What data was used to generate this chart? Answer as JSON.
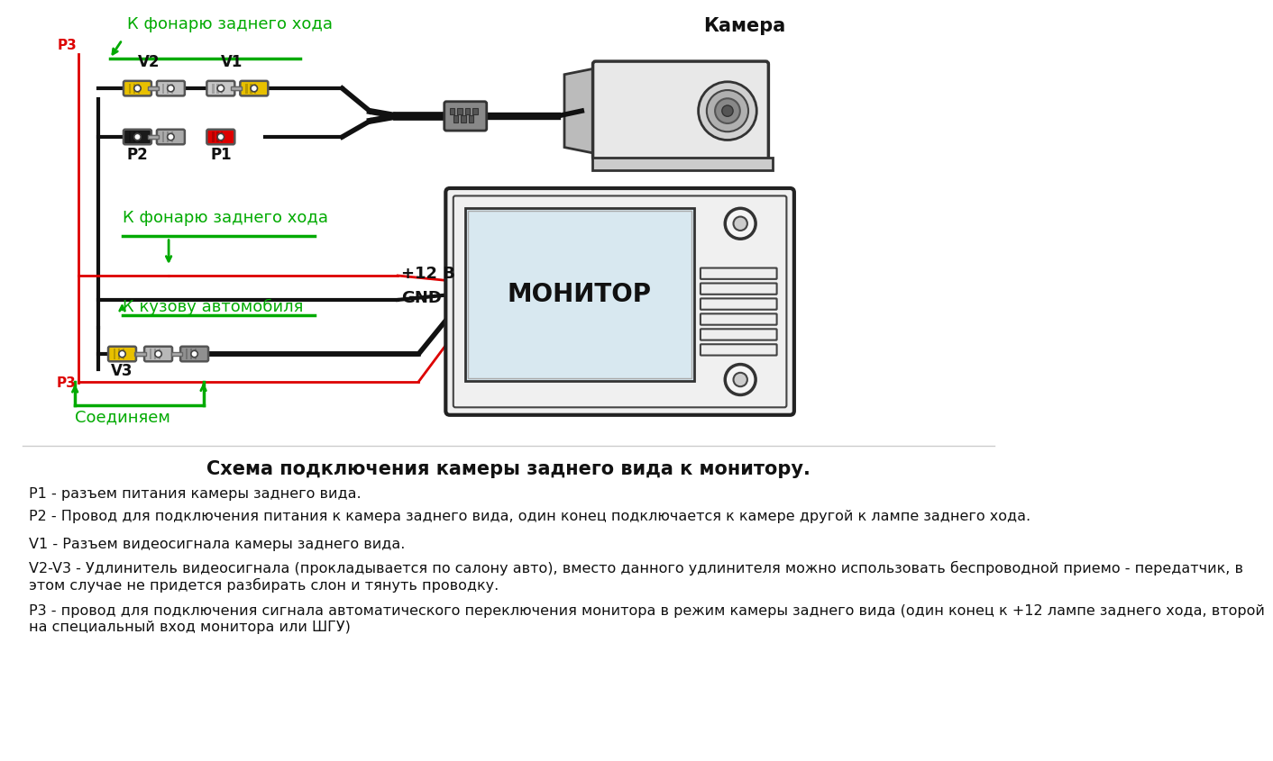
{
  "bg_color": "#ffffff",
  "title": "Схема подключения камеры заднего вида к монитору.",
  "legend_lines": [
    "P1 - разъем питания камеры заднего вида.",
    "P2 - Провод для подключения питания к камера заднего вида, один конец подключается к камере другой к лампе заднего хода.",
    "V1 - Разъем видеосигнала камеры заднего вида.",
    "V2-V3 - Удлинитель видеосигнала (прокладывается по салону авто), вместо данного удлинителя можно использовать беспроводной приемо - передатчик, в этом случае не придется разбирать слон и тянуть проводку.",
    "Р3 - провод для подключения сигнала автоматического переключения монитора в режим камеры заднего вида (один конец к +12 лампе заднего хода, второй на специальный вход монитора или ШГУ)"
  ],
  "green_color": "#00aa00",
  "red_color": "#dd0000",
  "black_color": "#111111",
  "yellow_color": "#e8c000",
  "dark_yellow": "#c8a000",
  "gray_color": "#888888",
  "light_gray": "#cccccc",
  "label_camera": "Камера",
  "label_monitor": "МОНИТОР",
  "label_v1": "V1",
  "label_v2": "V2",
  "label_v3": "V3",
  "label_p1": "P1",
  "label_p2": "P2",
  "label_p3_top": "Р3",
  "label_p3_bot": "Р3",
  "label_fonary1": "К фонарю заднего хода",
  "label_fonary2": "К фонарю заднего хода",
  "label_kuzov": "К кузову автомобиля",
  "label_soedinyaem": "Соединяем",
  "label_12v": "+12 В",
  "label_gnd": "GND"
}
